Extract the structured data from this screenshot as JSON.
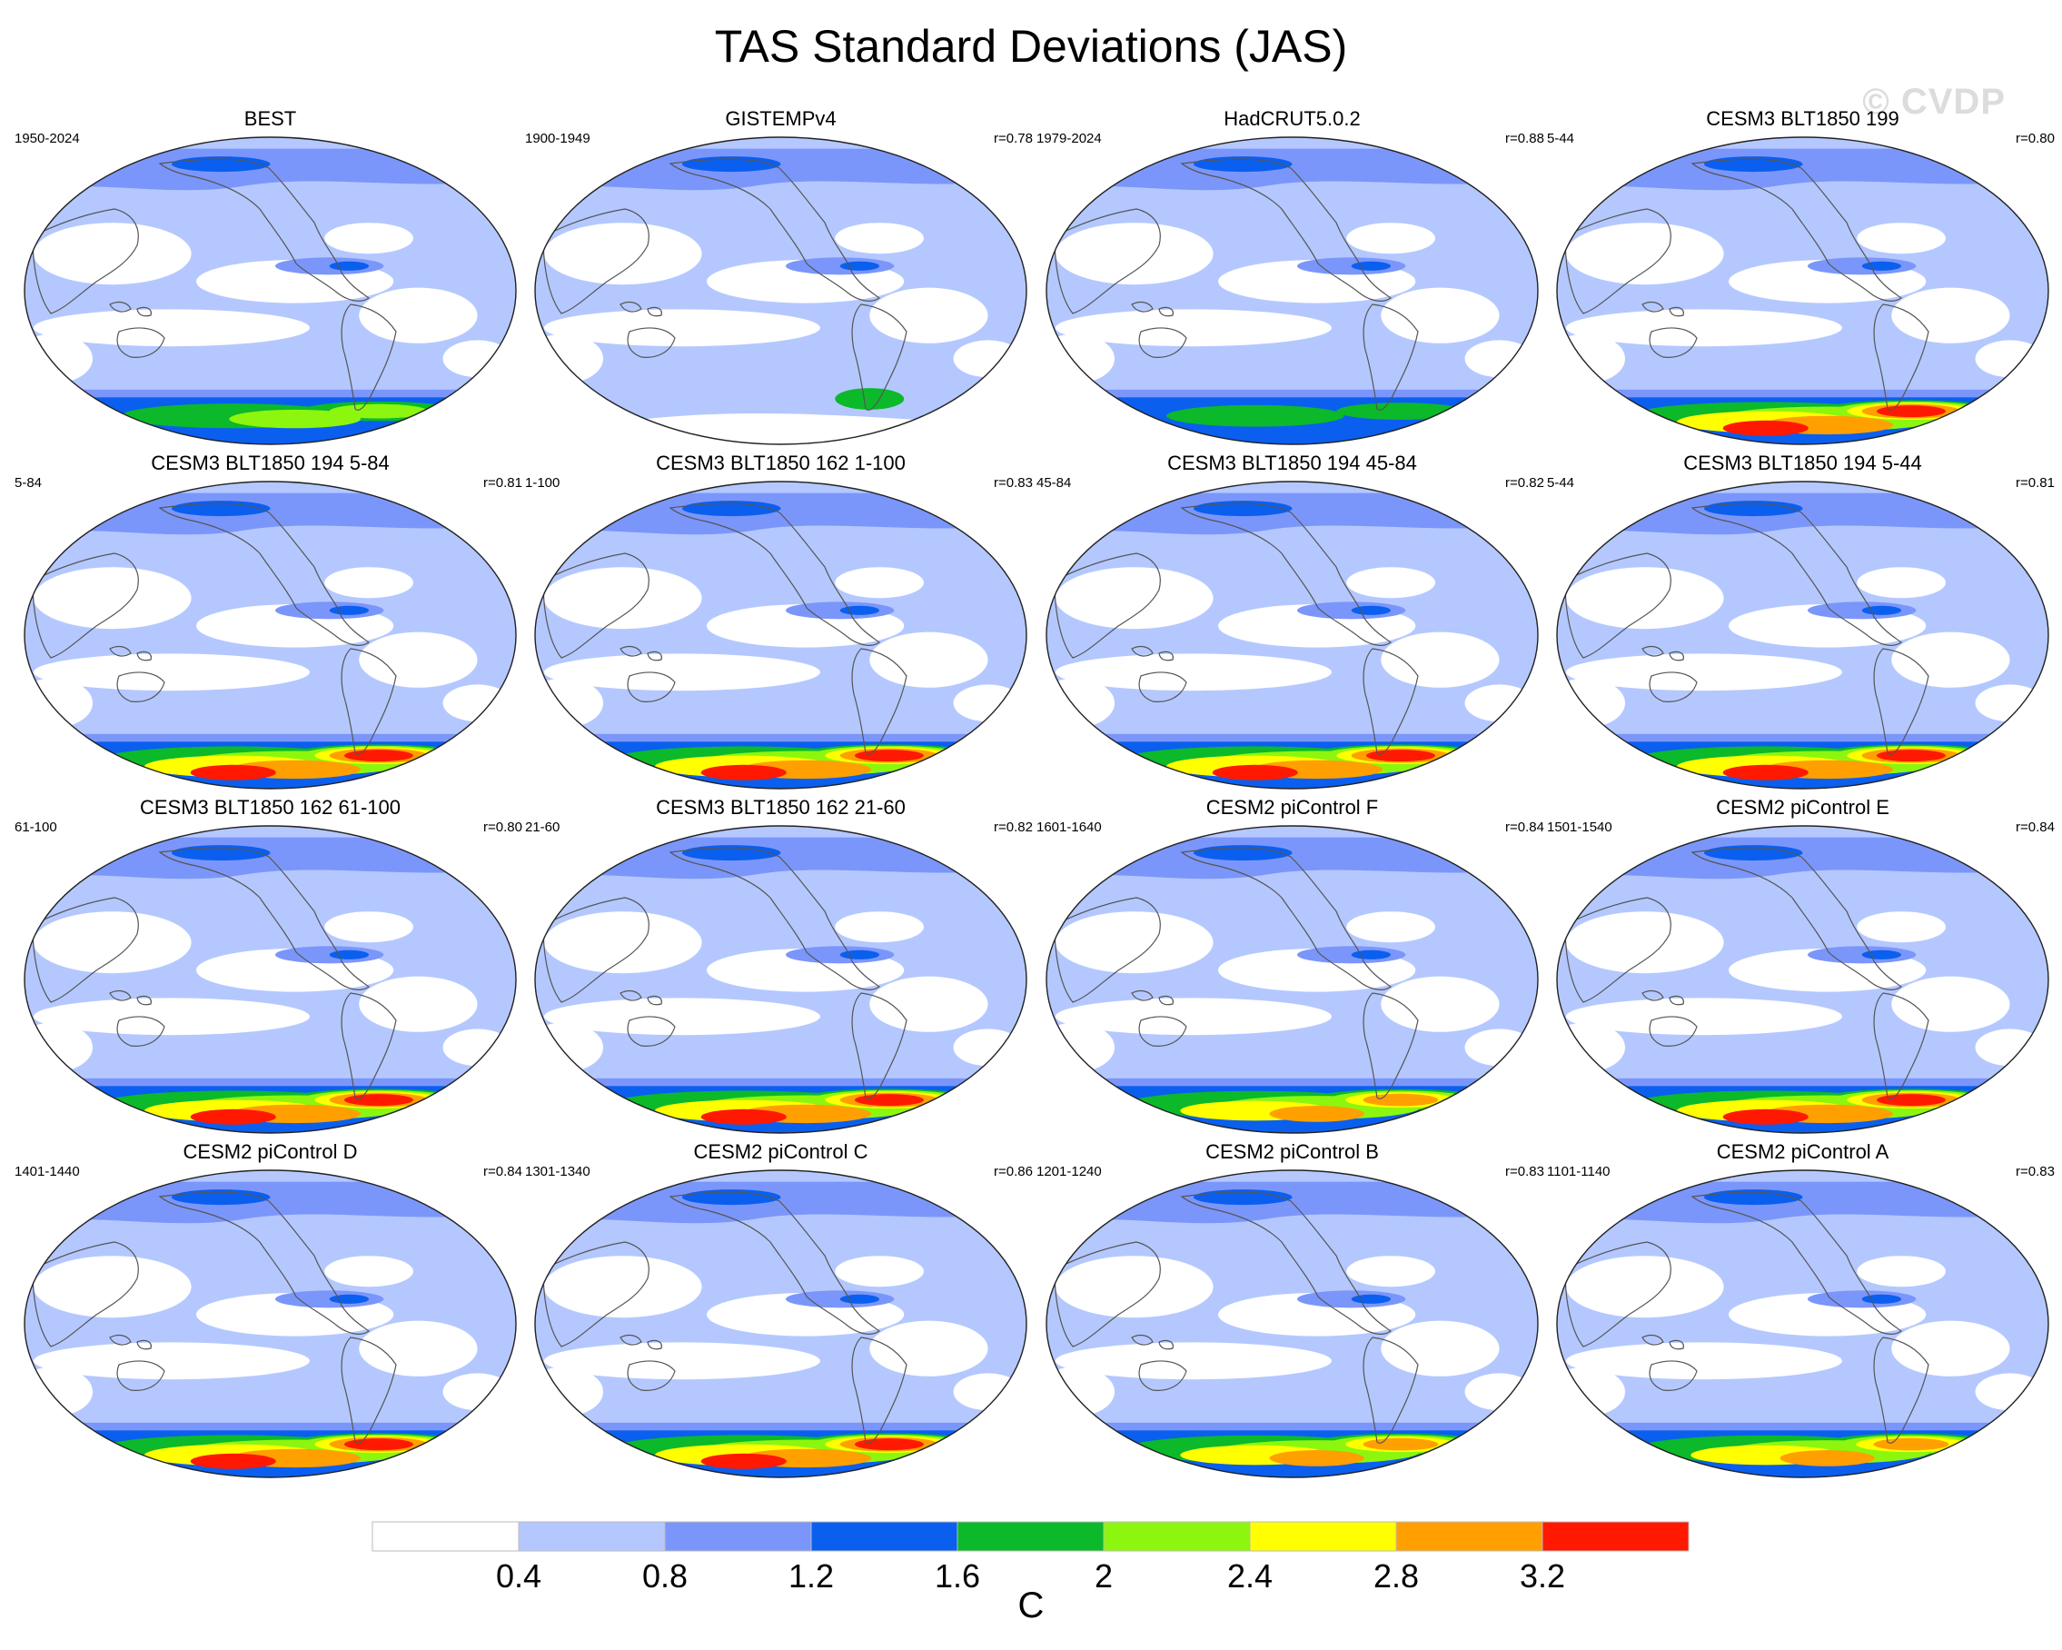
{
  "title": "TAS Standard Deviations (JAS)",
  "watermark": "© CVDP",
  "colors": {
    "levels": [
      "#ffffff",
      "#b4c8ff",
      "#7b96fa",
      "#0a5fef",
      "#0bb92a",
      "#8cf60e",
      "#ffff00",
      "#ffa000",
      "#ff1900"
    ],
    "coast": "#555555",
    "ellipse_border": "#222222"
  },
  "chart_data": {
    "type": "map",
    "title": "TAS Standard Deviations (JAS)",
    "variable": "TAS",
    "season": "JAS",
    "units": "C",
    "colorbar": {
      "labels": [
        "0.4",
        "0.8",
        "1.2",
        "1.6",
        "2",
        "2.4",
        "2.8",
        "3.2"
      ],
      "boundaries": [
        0.4,
        0.8,
        1.2,
        1.6,
        2.0,
        2.4,
        2.8,
        3.2
      ],
      "colors": [
        "#ffffff",
        "#b4c8ff",
        "#7b96fa",
        "#0a5fef",
        "#0bb92a",
        "#8cf60e",
        "#ffff00",
        "#ffa000",
        "#ff1900"
      ]
    },
    "panels": [
      {
        "title": "BEST",
        "years": "1950-2024",
        "r": "",
        "antarctic_peak": 2.1,
        "partial_antarctica": false
      },
      {
        "title": "GISTEMPv4",
        "years": "1900-1949",
        "r": "r=0.78",
        "antarctic_peak": 2.0,
        "partial_antarctica": true
      },
      {
        "title": "HadCRUT5.0.2",
        "years": "1979-2024",
        "r": "r=0.88",
        "antarctic_peak": 1.7,
        "partial_antarctica": false
      },
      {
        "title": "CESM3 BLT1850 199",
        "years": "5-44",
        "r": "r=0.80",
        "antarctic_peak": 3.3,
        "partial_antarctica": false
      },
      {
        "title": "CESM3 BLT1850 194 5-84",
        "years": "5-84",
        "r": "r=0.81",
        "antarctic_peak": 3.4,
        "partial_antarctica": false
      },
      {
        "title": "CESM3 BLT1850 162 1-100",
        "years": "1-100",
        "r": "r=0.83",
        "antarctic_peak": 3.3,
        "partial_antarctica": false
      },
      {
        "title": "CESM3 BLT1850 194 45-84",
        "years": "45-84",
        "r": "r=0.82",
        "antarctic_peak": 3.4,
        "partial_antarctica": false
      },
      {
        "title": "CESM3 BLT1850 194 5-44",
        "years": "5-44",
        "r": "r=0.81",
        "antarctic_peak": 3.4,
        "partial_antarctica": false
      },
      {
        "title": "CESM3 BLT1850 162 61-100",
        "years": "61-100",
        "r": "r=0.80",
        "antarctic_peak": 3.3,
        "partial_antarctica": false
      },
      {
        "title": "CESM3 BLT1850 162 21-60",
        "years": "21-60",
        "r": "r=0.82",
        "antarctic_peak": 3.3,
        "partial_antarctica": false
      },
      {
        "title": "CESM2 piControl F",
        "years": "1601-1640",
        "r": "r=0.84",
        "antarctic_peak": 3.0,
        "partial_antarctica": false
      },
      {
        "title": "CESM2 piControl E",
        "years": "1501-1540",
        "r": "r=0.84",
        "antarctic_peak": 3.3,
        "partial_antarctica": false
      },
      {
        "title": "CESM2 piControl D",
        "years": "1401-1440",
        "r": "r=0.84",
        "antarctic_peak": 3.3,
        "partial_antarctica": false
      },
      {
        "title": "CESM2 piControl C",
        "years": "1301-1340",
        "r": "r=0.86",
        "antarctic_peak": 3.3,
        "partial_antarctica": false
      },
      {
        "title": "CESM2 piControl B",
        "years": "1201-1240",
        "r": "r=0.83",
        "antarctic_peak": 3.0,
        "partial_antarctica": false
      },
      {
        "title": "CESM2 piControl A",
        "years": "1101-1140",
        "r": "r=0.83",
        "antarctic_peak": 3.0,
        "partial_antarctica": false
      }
    ]
  }
}
